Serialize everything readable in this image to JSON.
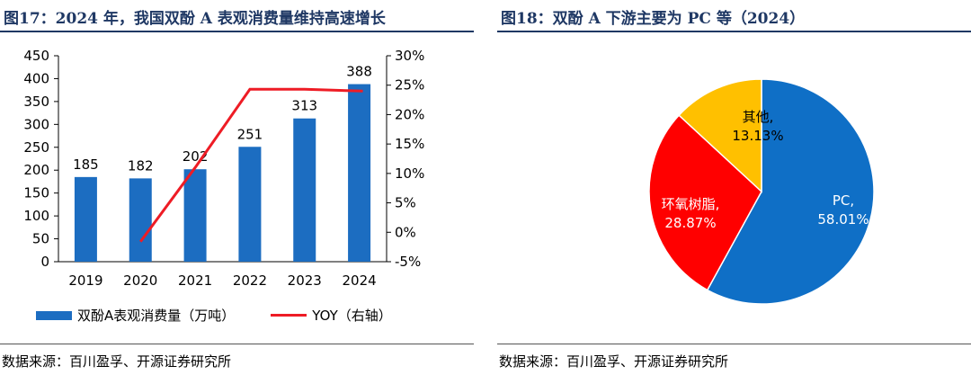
{
  "left": {
    "title": "图17：2024 年，我国双酚 A 表观消费量维持高速增长",
    "source": "数据来源：百川盈孚、开源证券研究所",
    "legend": {
      "bar": "双酚A表观消费量（万吨）",
      "line": "YOY（右轴）"
    }
  },
  "right": {
    "title": "图18：双酚 A 下游主要为 PC 等（2024）",
    "source": "数据来源：百川盈孚、开源证券研究所"
  },
  "colors": {
    "bar": "#1c6dc1",
    "line": "#ee1c25",
    "pie_pc": "#0f6fc6",
    "pie_epoxy": "#ff0000",
    "pie_other": "#ffc000"
  },
  "chart_data": [
    {
      "type": "bar",
      "categories": [
        "2019",
        "2020",
        "2021",
        "2022",
        "2023",
        "2024"
      ],
      "series": [
        {
          "name": "双酚A表观消费量（万吨）",
          "values": [
            185,
            182,
            202,
            251,
            313,
            388
          ],
          "labels": [
            "185",
            "182",
            "202",
            "251",
            "313",
            "388"
          ]
        },
        {
          "name": "YOY（右轴）",
          "type": "line",
          "axis": "right",
          "values": [
            null,
            -1.6,
            11.0,
            24.3,
            24.3,
            24.0
          ]
        }
      ],
      "ylim": [
        0,
        450
      ],
      "yticks": [
        "0",
        "50",
        "100",
        "150",
        "200",
        "250",
        "300",
        "350",
        "400",
        "450"
      ],
      "y2lim": [
        -5,
        30
      ],
      "y2ticks": [
        "-5%",
        "0%",
        "5%",
        "10%",
        "15%",
        "20%",
        "25%",
        "30%"
      ],
      "grid": false,
      "legend_position": "bottom"
    },
    {
      "type": "pie",
      "slices": [
        {
          "name": "PC",
          "label": "PC,",
          "pct": "58.01%",
          "value": 58.01,
          "color": "#0f6fc6",
          "text_color": "#ffffff"
        },
        {
          "name": "环氧树脂",
          "label": "环氧树脂,",
          "pct": "28.87%",
          "value": 28.87,
          "color": "#ff0000",
          "text_color": "#ffffff"
        },
        {
          "name": "其他",
          "label": "其他,",
          "pct": "13.13%",
          "value": 13.13,
          "color": "#ffc000",
          "text_color": "#000000"
        }
      ]
    }
  ]
}
